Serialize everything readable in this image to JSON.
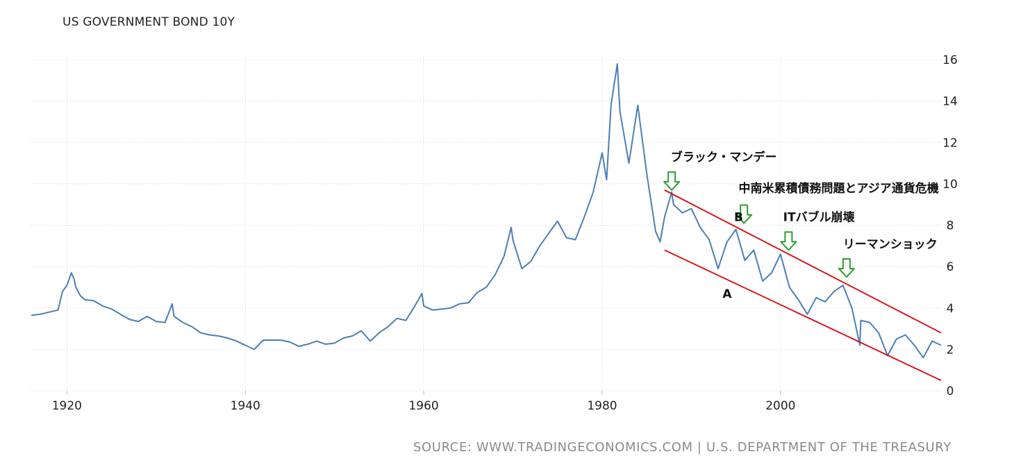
{
  "chart_data": {
    "type": "line",
    "title": "US GOVERNMENT BOND 10Y",
    "source": "SOURCE: WWW.TRADINGECONOMICS.COM | U.S. DEPARTMENT OF THE TREASURY",
    "xlabel": "",
    "ylabel": "",
    "xlim": [
      1916,
      2018
    ],
    "ylim": [
      0,
      16
    ],
    "x_ticks": [
      1920,
      1940,
      1960,
      1980,
      2000
    ],
    "y_ticks": [
      0,
      2,
      4,
      6,
      8,
      10,
      12,
      14,
      16
    ],
    "y_axis_position": "right",
    "grid": true,
    "series": [
      {
        "color": "#4a7fb5",
        "x": [
          1916,
          1917,
          1918,
          1919,
          1919.5,
          1920,
          1920.5,
          1920.8,
          1921,
          1921.5,
          1922,
          1923,
          1924,
          1925,
          1926,
          1927,
          1928,
          1929,
          1930,
          1931,
          1931.8,
          1932,
          1933,
          1934,
          1935,
          1936,
          1937,
          1938,
          1939,
          1940,
          1941,
          1942,
          1943,
          1944,
          1945,
          1946,
          1947,
          1948,
          1949,
          1950,
          1951,
          1952,
          1953,
          1954,
          1955,
          1956,
          1957,
          1958,
          1959,
          1959.8,
          1960,
          1961,
          1962,
          1963,
          1964,
          1965,
          1966,
          1967,
          1968,
          1969,
          1969.8,
          1970,
          1971,
          1972,
          1973,
          1974,
          1975,
          1976,
          1977,
          1978,
          1979,
          1980,
          1980.5,
          1981,
          1981.7,
          1982,
          1983,
          1984,
          1985,
          1986,
          1986.5,
          1987,
          1987.8,
          1988,
          1989,
          1990,
          1991,
          1992,
          1993,
          1994,
          1995,
          1996,
          1997,
          1998,
          1999,
          2000,
          2001,
          2002,
          2003,
          2004,
          2005,
          2006,
          2007,
          2008,
          2008.9,
          2009,
          2010,
          2011,
          2012,
          2013,
          2014,
          2015,
          2016,
          2017,
          2018
        ],
        "y": [
          3.65,
          3.7,
          3.8,
          3.9,
          4.8,
          5.1,
          5.7,
          5.4,
          5.0,
          4.6,
          4.4,
          4.35,
          4.1,
          3.95,
          3.7,
          3.45,
          3.35,
          3.6,
          3.35,
          3.3,
          4.2,
          3.6,
          3.3,
          3.1,
          2.8,
          2.7,
          2.65,
          2.55,
          2.4,
          2.2,
          2.0,
          2.45,
          2.45,
          2.45,
          2.35,
          2.15,
          2.25,
          2.4,
          2.25,
          2.3,
          2.55,
          2.65,
          2.9,
          2.4,
          2.8,
          3.1,
          3.5,
          3.4,
          4.1,
          4.7,
          4.1,
          3.9,
          3.95,
          4.0,
          4.2,
          4.25,
          4.75,
          5.0,
          5.6,
          6.5,
          7.9,
          7.3,
          5.9,
          6.25,
          7.0,
          7.6,
          8.2,
          7.4,
          7.3,
          8.4,
          9.6,
          11.5,
          10.2,
          13.8,
          15.8,
          13.5,
          11.0,
          13.8,
          10.5,
          7.7,
          7.2,
          8.4,
          9.6,
          9.0,
          8.6,
          8.8,
          7.9,
          7.3,
          5.9,
          7.2,
          7.8,
          6.3,
          6.8,
          5.3,
          5.7,
          6.6,
          5.0,
          4.4,
          3.7,
          4.5,
          4.3,
          4.8,
          5.1,
          4.0,
          2.2,
          3.4,
          3.3,
          2.8,
          1.7,
          2.5,
          2.7,
          2.2,
          1.6,
          2.4,
          2.2
        ]
      }
    ],
    "trend_lines": [
      {
        "color": "#d7191c",
        "x1": 1987,
        "y1": 9.7,
        "x2": 2018,
        "y2": 2.8
      },
      {
        "color": "#d7191c",
        "x1": 1987,
        "y1": 6.8,
        "x2": 2018,
        "y2": 0.5
      }
    ],
    "annotations": [
      {
        "text": "ブラック・マンデー",
        "x": 1987.7,
        "y": 11.1,
        "arrow": true
      },
      {
        "text": "中南米累積債務問題とアジア通貨危機",
        "x": 1995.3,
        "y": 9.6,
        "arrow": true
      },
      {
        "text": "ITバブル崩壊",
        "x": 2000.3,
        "y": 8.2,
        "arrow": true
      },
      {
        "text": "リーマンショック",
        "x": 2007.0,
        "y": 6.9,
        "arrow": true
      },
      {
        "text": "B",
        "x": 1994.8,
        "y": 8.2,
        "arrow": false
      },
      {
        "text": "A",
        "x": 1993.5,
        "y": 4.5,
        "arrow": false
      }
    ],
    "arrow_color": "#2ca02c",
    "arrows": [
      {
        "x": 1987.8,
        "y": 9.7
      },
      {
        "x": 1995.9,
        "y": 8.1
      },
      {
        "x": 2000.9,
        "y": 6.8
      },
      {
        "x": 2007.4,
        "y": 5.5
      }
    ]
  }
}
